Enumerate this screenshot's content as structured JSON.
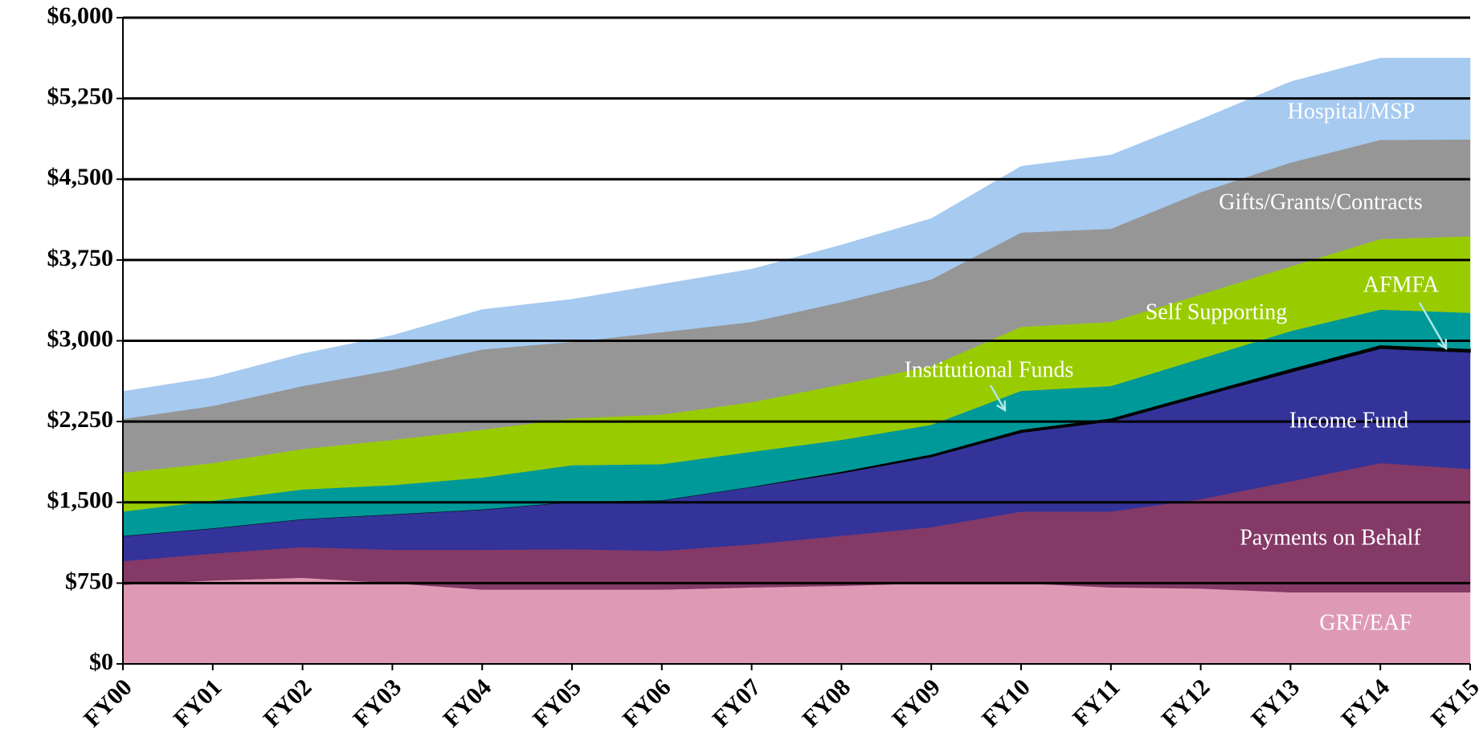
{
  "chart_data": {
    "type": "stacked_area",
    "categories": [
      "FY00",
      "FY01",
      "FY02",
      "FY03",
      "FY04",
      "FY05",
      "FY06",
      "FY07",
      "FY08",
      "FY09",
      "FY10",
      "FY11",
      "FY12",
      "FY13",
      "FY14",
      "FY15"
    ],
    "series": [
      {
        "name": "GRF/EAF",
        "color": "#de9ab4",
        "values": [
          735,
          775,
          800,
          750,
          690,
          690,
          690,
          710,
          725,
          750,
          750,
          710,
          700,
          665,
          665,
          665
        ]
      },
      {
        "name": "Payments on Behalf",
        "color": "#843966",
        "values": [
          220,
          250,
          285,
          310,
          370,
          375,
          360,
          400,
          465,
          520,
          665,
          705,
          830,
          1030,
          1200,
          1145
        ]
      },
      {
        "name": "Income Fund",
        "color": "#333399",
        "values": [
          235,
          235,
          260,
          330,
          375,
          440,
          470,
          535,
          585,
          655,
          735,
          840,
          955,
          1015,
          1065,
          1085
        ]
      },
      {
        "name": "AFMFA",
        "color": "#000000",
        "values": [
          0,
          0,
          0,
          0,
          0,
          0,
          0,
          0,
          10,
          20,
          25,
          25,
          25,
          30,
          30,
          30
        ]
      },
      {
        "name": "Institutional Funds",
        "color": "#009999",
        "values": [
          225,
          255,
          275,
          270,
          295,
          340,
          335,
          325,
          295,
          275,
          360,
          300,
          325,
          350,
          330,
          335
        ]
      },
      {
        "name": "Self Supporting",
        "color": "#99cc00",
        "values": [
          360,
          350,
          375,
          420,
          445,
          435,
          460,
          460,
          515,
          545,
          595,
          595,
          595,
          600,
          655,
          710
        ]
      },
      {
        "name": "Gifts/Grants/Contracts",
        "color": "#969696",
        "values": [
          500,
          530,
          585,
          650,
          745,
          710,
          765,
          745,
          765,
          805,
          875,
          865,
          950,
          965,
          920,
          900
        ]
      },
      {
        "name": "Hospital/MSP",
        "color": "#a6caf0",
        "values": [
          255,
          265,
          300,
          320,
          370,
          395,
          445,
          490,
          530,
          565,
          615,
          685,
          675,
          750,
          760,
          755
        ]
      }
    ],
    "ylim": [
      0,
      6000
    ],
    "yticks": [
      {
        "value": 0,
        "label": "$0"
      },
      {
        "value": 750,
        "label": "$750"
      },
      {
        "value": 1500,
        "label": "$1,500"
      },
      {
        "value": 2250,
        "label": "$2,250"
      },
      {
        "value": 3000,
        "label": "$3,000"
      },
      {
        "value": 3750,
        "label": "$3,750"
      },
      {
        "value": 4500,
        "label": "$4,500"
      },
      {
        "value": 5250,
        "label": "$5,250"
      },
      {
        "value": 6000,
        "label": "$6,000"
      }
    ],
    "grid": true
  }
}
